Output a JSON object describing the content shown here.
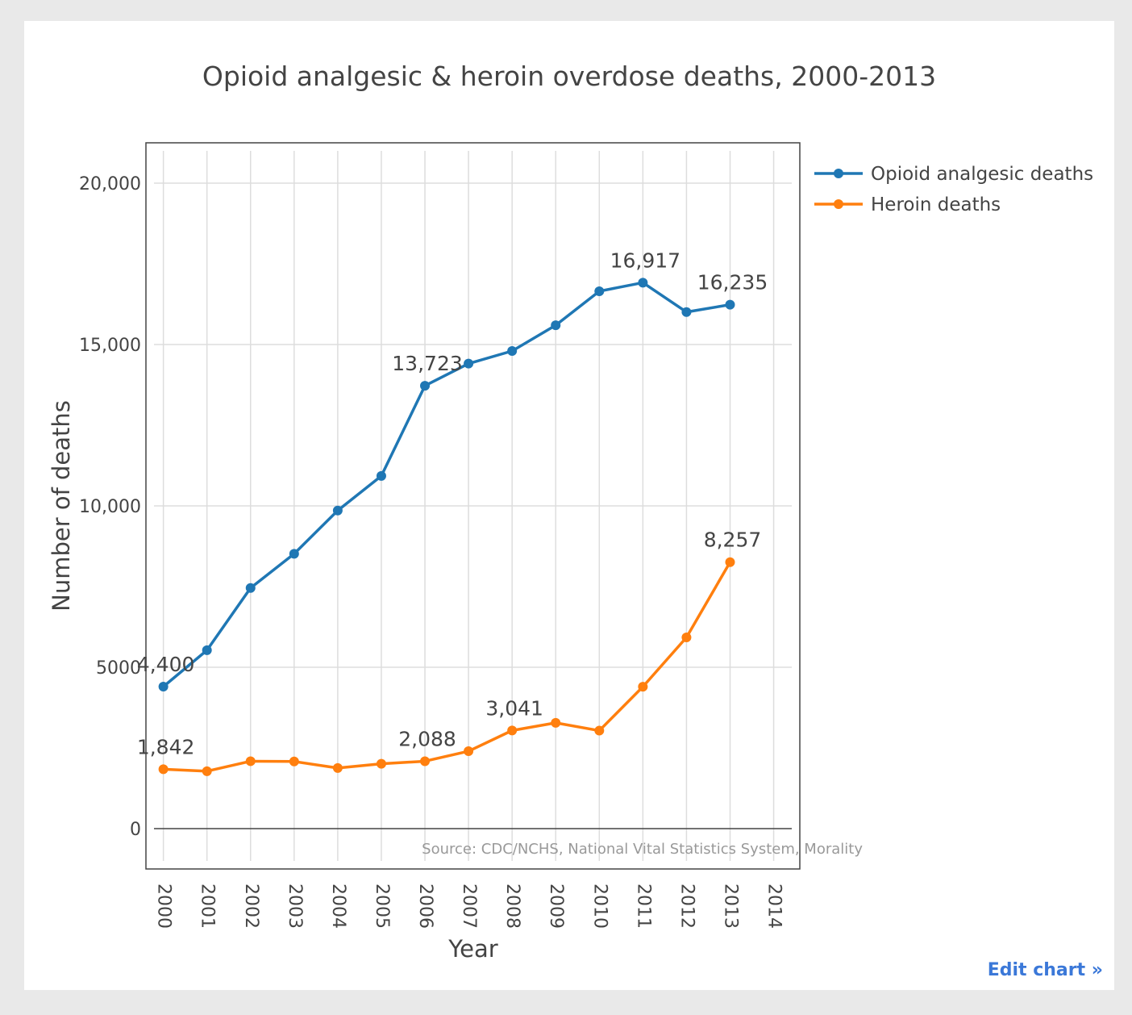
{
  "chart_data": {
    "type": "line",
    "title": "Opioid analgesic & heroin overdose  deaths, 2000-2013",
    "xlabel": "Year",
    "ylabel": "Number of deaths",
    "x_ticks": [
      "2000",
      "2001",
      "2002",
      "2003",
      "2004",
      "2005",
      "2006",
      "2007",
      "2008",
      "2009",
      "2010",
      "2011",
      "2012",
      "2013",
      "2014"
    ],
    "y_ticks": [
      {
        "value": 0,
        "label": "0"
      },
      {
        "value": 5000,
        "label": "5000"
      },
      {
        "value": 10000,
        "label": "10,000"
      },
      {
        "value": 15000,
        "label": "15,000"
      },
      {
        "value": 20000,
        "label": "20,000"
      }
    ],
    "xlim": [
      1999.6,
      2014.6
    ],
    "ylim": [
      -1250,
      21250
    ],
    "grid": true,
    "legend_position": "top-right",
    "series": [
      {
        "name": "Opioid analgesic deaths",
        "color": "#1f77b4",
        "x": [
          2000,
          2001,
          2002,
          2003,
          2004,
          2005,
          2006,
          2007,
          2008,
          2009,
          2010,
          2011,
          2012,
          2013
        ],
        "values": [
          4400,
          5528,
          7456,
          8517,
          9857,
          10928,
          13723,
          14408,
          14800,
          15597,
          16651,
          16917,
          16007,
          16235
        ]
      },
      {
        "name": "Heroin deaths",
        "color": "#ff7f0e",
        "x": [
          2000,
          2001,
          2002,
          2003,
          2004,
          2005,
          2006,
          2007,
          2008,
          2009,
          2010,
          2011,
          2012,
          2013
        ],
        "values": [
          1842,
          1779,
          2089,
          2080,
          1878,
          2009,
          2088,
          2399,
          3041,
          3278,
          3036,
          4397,
          5925,
          8257
        ]
      }
    ],
    "annotations": [
      {
        "series": 0,
        "index": 0,
        "text": "4,400"
      },
      {
        "series": 0,
        "index": 6,
        "text": "13,723"
      },
      {
        "series": 0,
        "index": 11,
        "text": "16,917"
      },
      {
        "series": 0,
        "index": 13,
        "text": "16,235"
      },
      {
        "series": 1,
        "index": 0,
        "text": "1,842"
      },
      {
        "series": 1,
        "index": 6,
        "text": "2,088"
      },
      {
        "series": 1,
        "index": 8,
        "text": "3,041"
      },
      {
        "series": 1,
        "index": 13,
        "text": "8,257"
      }
    ],
    "source_note": "Source: CDC/NCHS, National Vital Statistics System, Morality"
  },
  "footer": {
    "edit_link": "Edit chart »"
  }
}
